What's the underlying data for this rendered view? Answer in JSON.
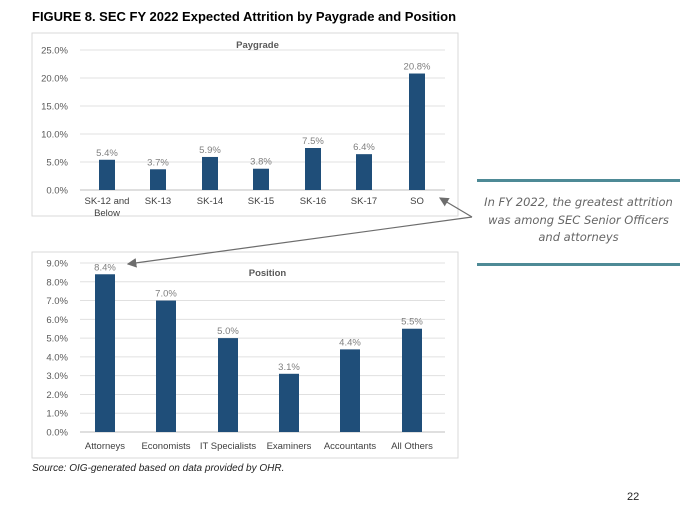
{
  "figure_title": "FIGURE 8. SEC FY 2022 Expected Attrition by Paygrade and Position",
  "source": "Source: OIG-generated based on data provided by OHR.",
  "page_number": "22",
  "callout": "In FY 2022, the greatest attrition was among SEC Senior Officers and attorneys",
  "colors": {
    "bar": "#1f4e79",
    "callout_rule": "#4e8a96",
    "label": "#7f7f7f"
  },
  "chart_data": [
    {
      "type": "bar",
      "title": "Paygrade",
      "categories": [
        "SK-12 and Below",
        "SK-13",
        "SK-14",
        "SK-15",
        "SK-16",
        "SK-17",
        "SO"
      ],
      "category_lines": [
        [
          "SK-12 and",
          "Below"
        ],
        [
          "SK-13"
        ],
        [
          "SK-14"
        ],
        [
          "SK-15"
        ],
        [
          "SK-16"
        ],
        [
          "SK-17"
        ],
        [
          "SO"
        ]
      ],
      "values": [
        5.4,
        3.7,
        5.9,
        3.8,
        7.5,
        6.4,
        20.8
      ],
      "data_labels": [
        "5.4%",
        "3.7%",
        "5.9%",
        "3.8%",
        "7.5%",
        "6.4%",
        "20.8%"
      ],
      "ylim": [
        0,
        25
      ],
      "yticks": [
        0,
        5,
        10,
        15,
        20,
        25
      ],
      "ytick_labels": [
        "0.0%",
        "5.0%",
        "10.0%",
        "15.0%",
        "20.0%",
        "25.0%"
      ],
      "grid": true
    },
    {
      "type": "bar",
      "title": "Position",
      "categories": [
        "Attorneys",
        "Economists",
        "IT Specialists",
        "Examiners",
        "Accountants",
        "All Others"
      ],
      "values": [
        8.4,
        7.0,
        5.0,
        3.1,
        4.4,
        5.5
      ],
      "data_labels": [
        "8.4%",
        "7.0%",
        "5.0%",
        "3.1%",
        "4.4%",
        "5.5%"
      ],
      "ylim": [
        0,
        9
      ],
      "yticks": [
        0,
        1,
        2,
        3,
        4,
        5,
        6,
        7,
        8,
        9
      ],
      "ytick_labels": [
        "0.0%",
        "1.0%",
        "2.0%",
        "3.0%",
        "4.0%",
        "5.0%",
        "6.0%",
        "7.0%",
        "8.0%",
        "9.0%"
      ],
      "grid": true
    }
  ]
}
